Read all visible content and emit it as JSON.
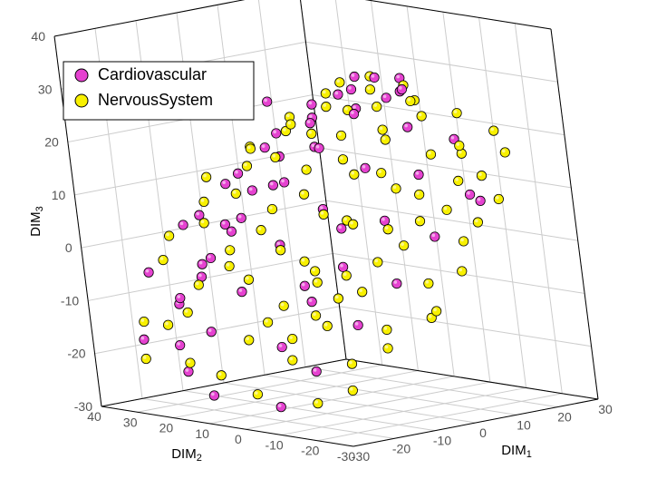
{
  "chart": {
    "type": "scatter3d",
    "background_color": "#ffffff",
    "grid_color": "#cccccc",
    "axis_line_color": "#000000",
    "tick_label_color": "#555555",
    "label_fontsize": 15,
    "tick_fontsize": 14,
    "axes": {
      "x": {
        "label": "DIM1",
        "min": -30,
        "max": 30,
        "step": 10
      },
      "y": {
        "label": "DIM2",
        "min": -30,
        "max": 40,
        "step": 10
      },
      "z": {
        "label": "DIM3",
        "min": -30,
        "max": 40,
        "step": 10
      }
    },
    "legend": {
      "position": "top-left",
      "items": [
        {
          "label": "Cardiovascular",
          "fill": "#e542d0",
          "stroke": "#000000"
        },
        {
          "label": "NervousSystem",
          "fill": "#f8f000",
          "stroke": "#000000"
        }
      ]
    },
    "marker": {
      "radius": 5.2,
      "stroke_width": 0.8
    },
    "series": [
      {
        "name": "Cardiovascular",
        "fill": "#e542d0",
        "stroke": "#000000",
        "points": [
          [
            -22,
            35,
            -18
          ],
          [
            -15,
            32,
            -12
          ],
          [
            -10,
            30,
            -5
          ],
          [
            -5,
            28,
            2
          ],
          [
            0,
            25,
            8
          ],
          [
            5,
            22,
            14
          ],
          [
            10,
            18,
            20
          ],
          [
            15,
            15,
            25
          ],
          [
            20,
            10,
            28
          ],
          [
            22,
            5,
            26
          ],
          [
            -18,
            28,
            -10
          ],
          [
            -12,
            25,
            -3
          ],
          [
            -6,
            22,
            4
          ],
          [
            2,
            18,
            10
          ],
          [
            8,
            14,
            16
          ],
          [
            14,
            10,
            22
          ],
          [
            18,
            5,
            25
          ],
          [
            -8,
            33,
            -8
          ],
          [
            -2,
            30,
            0
          ],
          [
            6,
            26,
            8
          ],
          [
            12,
            20,
            15
          ],
          [
            18,
            14,
            22
          ],
          [
            24,
            8,
            25
          ],
          [
            -25,
            20,
            -22
          ],
          [
            -20,
            18,
            -15
          ],
          [
            -14,
            15,
            -8
          ],
          [
            -6,
            12,
            0
          ],
          [
            2,
            8,
            6
          ],
          [
            10,
            4,
            13
          ],
          [
            18,
            0,
            20
          ],
          [
            -5,
            35,
            3
          ],
          [
            3,
            32,
            10
          ],
          [
            10,
            28,
            17
          ],
          [
            16,
            24,
            22
          ],
          [
            22,
            18,
            27
          ],
          [
            -12,
            8,
            -18
          ],
          [
            -6,
            5,
            -10
          ],
          [
            0,
            2,
            -4
          ],
          [
            8,
            -2,
            4
          ],
          [
            15,
            -5,
            12
          ],
          [
            22,
            -8,
            18
          ],
          [
            -25,
            -5,
            -26
          ],
          [
            -18,
            -8,
            -20
          ],
          [
            -10,
            -12,
            -12
          ],
          [
            -2,
            -15,
            -5
          ],
          [
            6,
            -18,
            3
          ],
          [
            14,
            -20,
            10
          ],
          [
            -18,
            36,
            -6
          ],
          [
            -10,
            34,
            2
          ],
          [
            -2,
            30,
            9
          ],
          [
            6,
            27,
            15
          ],
          [
            14,
            22,
            20
          ],
          [
            20,
            17,
            25
          ],
          [
            26,
            10,
            27
          ],
          [
            13,
            33,
            22
          ],
          [
            -28,
            10,
            -25
          ],
          [
            -22,
            25,
            -18
          ],
          [
            -3,
            10,
            -8
          ],
          [
            5,
            7,
            2
          ],
          [
            18,
            -18,
            8
          ]
        ]
      },
      {
        "name": "NervousSystem",
        "fill": "#f8f000",
        "stroke": "#000000",
        "points": [
          [
            -20,
            30,
            -15
          ],
          [
            -14,
            27,
            -8
          ],
          [
            -8,
            24,
            -2
          ],
          [
            0,
            20,
            5
          ],
          [
            6,
            16,
            12
          ],
          [
            12,
            12,
            18
          ],
          [
            18,
            8,
            23
          ],
          [
            22,
            3,
            24
          ],
          [
            -24,
            12,
            -22
          ],
          [
            -18,
            10,
            -16
          ],
          [
            -12,
            6,
            -10
          ],
          [
            -6,
            3,
            -4
          ],
          [
            2,
            0,
            4
          ],
          [
            10,
            -4,
            10
          ],
          [
            16,
            -8,
            16
          ],
          [
            -10,
            28,
            3
          ],
          [
            -4,
            25,
            8
          ],
          [
            4,
            22,
            14
          ],
          [
            10,
            18,
            18
          ],
          [
            16,
            14,
            22
          ],
          [
            -26,
            0,
            -24
          ],
          [
            -20,
            -4,
            -18
          ],
          [
            -14,
            -8,
            -12
          ],
          [
            -8,
            -12,
            -6
          ],
          [
            0,
            -16,
            2
          ],
          [
            8,
            -20,
            8
          ],
          [
            14,
            -24,
            14
          ],
          [
            -12,
            15,
            -6
          ],
          [
            -6,
            12,
            -1
          ],
          [
            2,
            8,
            5
          ],
          [
            8,
            5,
            12
          ],
          [
            14,
            2,
            18
          ],
          [
            20,
            -2,
            22
          ],
          [
            -8,
            2,
            -12
          ],
          [
            -2,
            -1,
            -5
          ],
          [
            6,
            -5,
            3
          ],
          [
            12,
            -8,
            9
          ],
          [
            20,
            -12,
            16
          ],
          [
            25,
            -16,
            20
          ],
          [
            -3,
            34,
            10
          ],
          [
            5,
            30,
            15
          ],
          [
            12,
            26,
            20
          ],
          [
            18,
            22,
            24
          ],
          [
            24,
            16,
            27
          ],
          [
            -22,
            -12,
            -25
          ],
          [
            -16,
            -16,
            -18
          ],
          [
            -10,
            -20,
            -12
          ],
          [
            -2,
            -24,
            -4
          ],
          [
            6,
            -26,
            3
          ],
          [
            14,
            -28,
            10
          ],
          [
            -28,
            28,
            -20
          ],
          [
            -20,
            24,
            -12
          ],
          [
            -12,
            20,
            -4
          ],
          [
            -5,
            18,
            2
          ],
          [
            3,
            14,
            8
          ],
          [
            10,
            10,
            14
          ],
          [
            17,
            6,
            19
          ],
          [
            23,
            3,
            24
          ],
          [
            -16,
            0,
            -15
          ],
          [
            -8,
            -5,
            -8
          ],
          [
            0,
            -8,
            -2
          ],
          [
            8,
            -12,
            5
          ],
          [
            15,
            -16,
            12
          ],
          [
            22,
            -22,
            17
          ],
          [
            -4,
            -26,
            -10
          ],
          [
            3,
            -28,
            -2
          ],
          [
            10,
            -26,
            6
          ],
          [
            -24,
            32,
            -14
          ],
          [
            -15,
            35,
            -4
          ],
          [
            -6,
            32,
            6
          ],
          [
            2,
            28,
            12
          ],
          [
            9,
            24,
            18
          ],
          [
            16,
            20,
            22
          ],
          [
            22,
            14,
            25
          ],
          [
            -20,
            -20,
            -22
          ],
          [
            -12,
            -22,
            -15
          ],
          [
            -12,
            36,
            0
          ],
          [
            0,
            24,
            16
          ],
          [
            7,
            20,
            20
          ],
          [
            -6,
            -30,
            -8
          ],
          [
            18,
            -14,
            18
          ],
          [
            26,
            -5,
            22
          ],
          [
            25,
            8,
            26
          ],
          [
            -26,
            18,
            -20
          ],
          [
            -18,
            4,
            -12
          ],
          [
            -10,
            -2,
            -5
          ],
          [
            -4,
            8,
            -3
          ],
          [
            4,
            4,
            4
          ],
          [
            12,
            2,
            12
          ],
          [
            20,
            20,
            26
          ]
        ]
      }
    ]
  }
}
